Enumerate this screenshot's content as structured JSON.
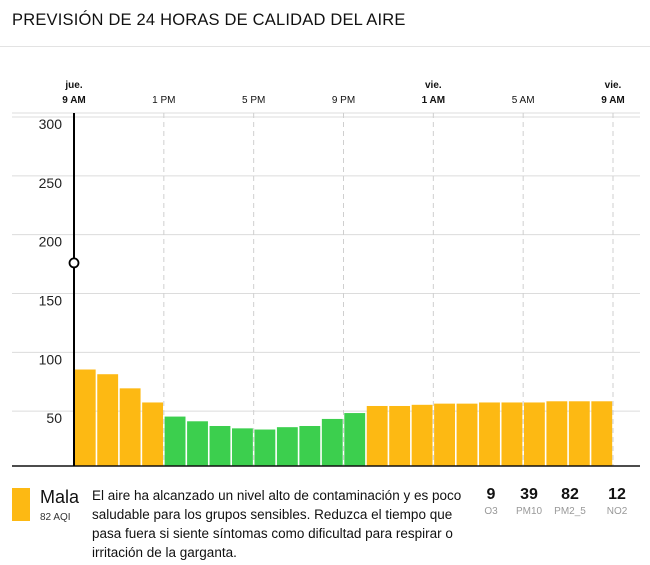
{
  "header": {
    "title": "PREVISIÓN DE 24 HORAS DE CALIDAD DEL AIRE"
  },
  "colors": {
    "bad": "#FDB913",
    "good": "#3CCF4E"
  },
  "chart_data": {
    "type": "bar",
    "title": "PREVISIÓN DE 24 HORAS DE CALIDAD DEL AIRE",
    "xlabel": "",
    "ylabel": "",
    "ylim": [
      0,
      320
    ],
    "yticks": [
      300,
      250,
      200,
      150,
      100,
      50
    ],
    "time_ticks": [
      {
        "day": "jue.",
        "time": "9 AM",
        "index": 0,
        "bold": true
      },
      {
        "day": "",
        "time": "1 PM",
        "index": 4,
        "bold": false
      },
      {
        "day": "",
        "time": "5 PM",
        "index": 8,
        "bold": false
      },
      {
        "day": "",
        "time": "9 PM",
        "index": 12,
        "bold": false
      },
      {
        "day": "vie.",
        "time": "1 AM",
        "index": 16,
        "bold": true
      },
      {
        "day": "",
        "time": "5 AM",
        "index": 20,
        "bold": false
      },
      {
        "day": "vie.",
        "time": "9 AM",
        "index": 24,
        "bold": true
      }
    ],
    "marker_value": 176,
    "values": [
      82,
      78,
      66,
      54,
      42,
      38,
      34,
      32,
      31,
      33,
      34,
      40,
      45,
      51,
      51,
      52,
      53,
      53,
      54,
      54,
      54,
      55,
      55,
      55
    ],
    "categories": [
      "bad",
      "bad",
      "bad",
      "bad",
      "good",
      "good",
      "good",
      "good",
      "good",
      "good",
      "good",
      "good",
      "good",
      "bad",
      "bad",
      "bad",
      "bad",
      "bad",
      "bad",
      "bad",
      "bad",
      "bad",
      "bad",
      "bad"
    ]
  },
  "legend": {
    "label": "Mala",
    "aqi": "82 AQI"
  },
  "description": "El aire ha alcanzado un nivel alto de contaminación y es poco saludable para los grupos sensibles. Reduzca el tiempo que pasa fuera si siente síntomas como dificultad para respirar o irritación de la garganta.",
  "pollutants": [
    {
      "value": "9",
      "name": "O3"
    },
    {
      "value": "39",
      "name": "PM10"
    },
    {
      "value": "82",
      "name": "PM2_5"
    },
    {
      "value": "12",
      "name": "NO2"
    }
  ]
}
